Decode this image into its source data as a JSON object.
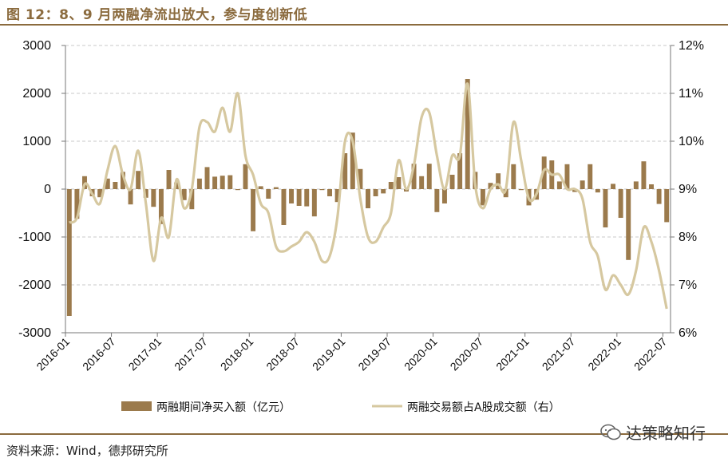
{
  "header": {
    "title": "图 12：8、9 月两融净流出放大，参与度创新低"
  },
  "footer": {
    "source": "资料来源：Wind，德邦研究所",
    "watermark": "达策略知行"
  },
  "colors": {
    "bar": "#9b7a4c",
    "line": "#d6c8a0",
    "accent": "#8b6b3e"
  },
  "chart_data": {
    "type": "bar+line",
    "x_ticks": [
      "2016-01",
      "2016-07",
      "2017-01",
      "2017-07",
      "2018-01",
      "2018-07",
      "2019-01",
      "2019-07",
      "2020-01",
      "2020-07",
      "2021-01",
      "2021-07",
      "2022-01",
      "2022-07"
    ],
    "y_left": {
      "ticks": [
        3000,
        2000,
        1000,
        0,
        -1000,
        -2000,
        -3000
      ],
      "lim": [
        -3000,
        3000
      ]
    },
    "y_right": {
      "ticks": [
        "12%",
        "11%",
        "10%",
        "9%",
        "8%",
        "7%",
        "6%"
      ],
      "lim": [
        6,
        12
      ]
    },
    "series": [
      {
        "name": "两融期间净买入额（亿元）",
        "kind": "bar",
        "axis": "left",
        "values": [
          -2650,
          -620,
          270,
          -150,
          -170,
          220,
          150,
          360,
          -320,
          380,
          -180,
          -370,
          -730,
          400,
          140,
          -230,
          -420,
          220,
          460,
          260,
          280,
          290,
          -20,
          520,
          -880,
          60,
          -200,
          40,
          -750,
          -300,
          -350,
          -360,
          -570,
          -20,
          -150,
          -270,
          750,
          1180,
          420,
          -400,
          -150,
          -90,
          150,
          250,
          -50,
          530,
          270,
          530,
          -480,
          -300,
          300,
          750,
          2300,
          360,
          -340,
          130,
          330,
          -170,
          520,
          -20,
          -340,
          -220,
          680,
          600,
          160,
          520,
          -60,
          180,
          520,
          -70,
          -800,
          110,
          -600,
          -1480,
          160,
          580,
          100,
          -310,
          -690
        ]
      },
      {
        "name": "两融交易额占A股成交额（右）",
        "kind": "line",
        "axis": "right",
        "values": [
          8.3,
          8.4,
          9.1,
          8.9,
          8.7,
          9.4,
          9.9,
          9.3,
          9.0,
          9.8,
          8.7,
          7.5,
          8.4,
          8.0,
          9.2,
          8.6,
          9.0,
          10.3,
          10.4,
          10.2,
          10.7,
          10.2,
          11.0,
          9.7,
          9.3,
          8.7,
          8.5,
          7.8,
          7.7,
          7.8,
          7.9,
          8.1,
          7.9,
          7.5,
          7.6,
          8.4,
          10.0,
          10.0,
          8.8,
          8.0,
          7.9,
          8.2,
          8.5,
          9.6,
          9.0,
          9.5,
          10.5,
          10.6,
          9.7,
          9.0,
          9.7,
          9.7,
          11.2,
          9.1,
          8.6,
          9.0,
          9.1,
          9.0,
          10.4,
          9.6,
          8.8,
          8.9,
          9.4,
          9.3,
          9.3,
          9.0,
          9.0,
          8.8,
          7.9,
          7.6,
          6.9,
          7.2,
          7.0,
          6.8,
          7.3,
          8.2,
          7.9,
          7.3,
          6.5
        ]
      }
    ]
  }
}
